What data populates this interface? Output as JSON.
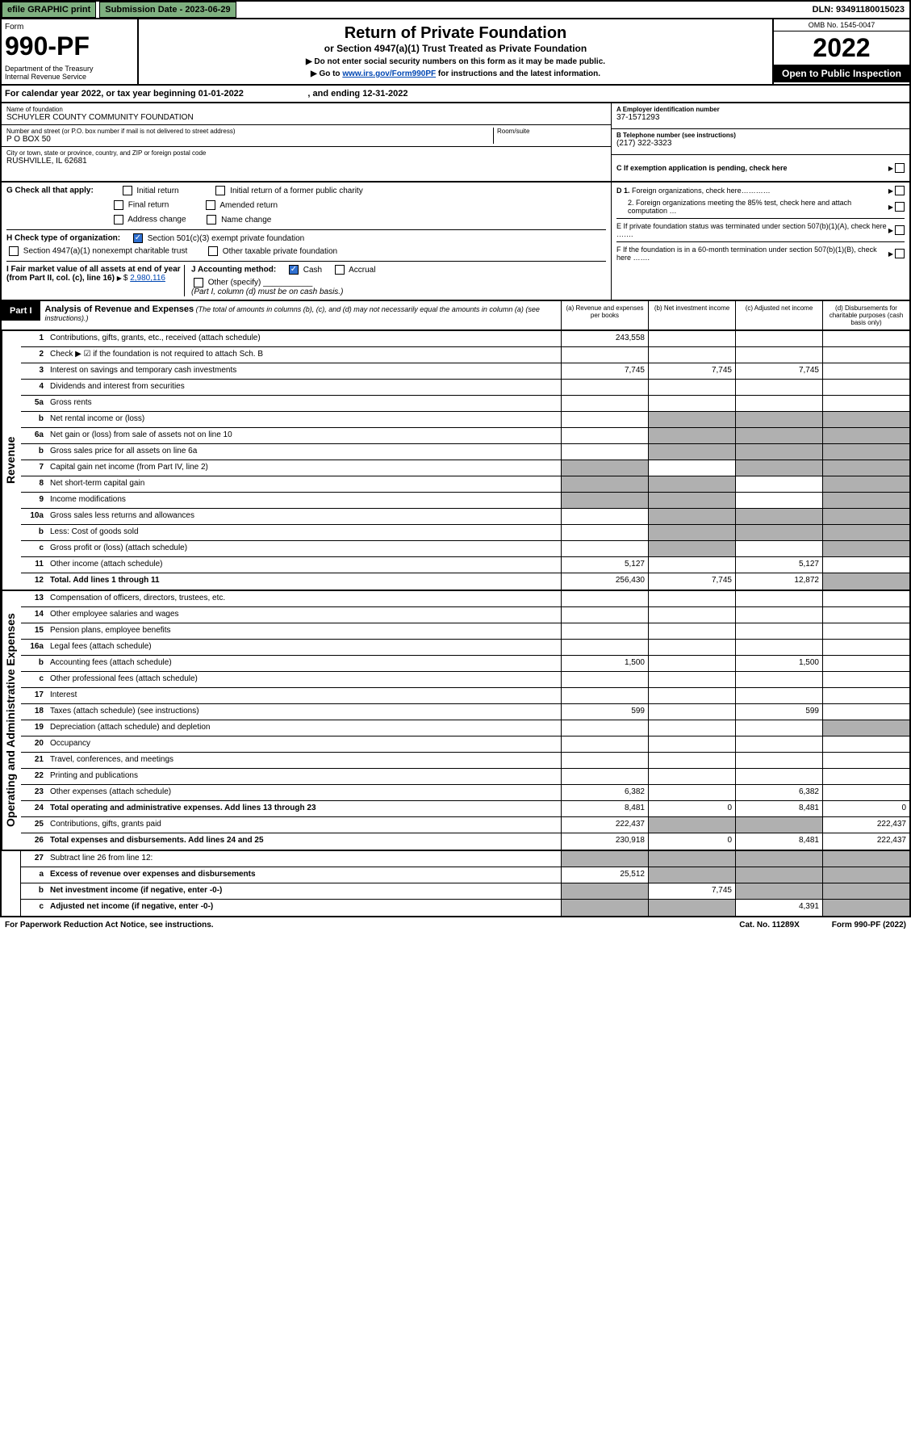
{
  "topbar": {
    "efile": "efile GRAPHIC print",
    "subdate_label": "Submission Date - 2023-06-29",
    "dln": "DLN: 93491180015023"
  },
  "header": {
    "form_word": "Form",
    "form_no": "990-PF",
    "dept": "Department of the Treasury\nInternal Revenue Service",
    "title": "Return of Private Foundation",
    "subtitle": "or Section 4947(a)(1) Trust Treated as Private Foundation",
    "note1": "▶ Do not enter social security numbers on this form as it may be made public.",
    "note2_pre": "▶ Go to ",
    "note2_link": "www.irs.gov/Form990PF",
    "note2_post": " for instructions and the latest information.",
    "omb": "OMB No. 1545-0047",
    "year": "2022",
    "open": "Open to Public Inspection"
  },
  "calrow": "For calendar year 2022, or tax year beginning 01-01-2022                          , and ending 12-31-2022",
  "id": {
    "name_label": "Name of foundation",
    "name": "SCHUYLER COUNTY COMMUNITY FOUNDATION",
    "addr_label": "Number and street (or P.O. box number if mail is not delivered to street address)",
    "addr": "P O BOX 50",
    "room_label": "Room/suite",
    "city_label": "City or town, state or province, country, and ZIP or foreign postal code",
    "city": "RUSHVILLE, IL  62681",
    "ein_label": "A Employer identification number",
    "ein": "37-1571293",
    "phone_label": "B Telephone number (see instructions)",
    "phone": "(217) 322-3323",
    "c_label": "C If exemption application is pending, check here"
  },
  "g": {
    "label": "G Check all that apply:",
    "opts": [
      "Initial return",
      "Final return",
      "Address change",
      "Initial return of a former public charity",
      "Amended return",
      "Name change"
    ]
  },
  "h": {
    "label": "H Check type of organization:",
    "opt1": "Section 501(c)(3) exempt private foundation",
    "opt2": "Section 4947(a)(1) nonexempt charitable trust",
    "opt3": "Other taxable private foundation"
  },
  "i": {
    "label": "I Fair market value of all assets at end of year (from Part II, col. (c), line 16)",
    "value": "2,980,116"
  },
  "j": {
    "label": "J Accounting method:",
    "cash": "Cash",
    "accrual": "Accrual",
    "other": "Other (specify)",
    "note": "(Part I, column (d) must be on cash basis.)"
  },
  "d": {
    "d1": "D 1. Foreign organizations, check here…………",
    "d2": "2. Foreign organizations meeting the 85% test, check here and attach computation …"
  },
  "e": "E  If private foundation status was terminated under section 507(b)(1)(A), check here …….",
  "f": "F  If the foundation is in a 60-month termination under section 507(b)(1)(B), check here …….",
  "part1": {
    "label": "Part I",
    "title": "Analysis of Revenue and Expenses",
    "note": "(The total of amounts in columns (b), (c), and (d) may not necessarily equal the amounts in column (a) (see instructions).)",
    "colA": "(a)   Revenue and expenses per books",
    "colB": "(b)   Net investment income",
    "colC": "(c)   Adjusted net income",
    "colD": "(d)  Disbursements for charitable purposes (cash basis only)"
  },
  "sections": {
    "revenue": "Revenue",
    "expenses": "Operating and Administrative Expenses"
  },
  "rows": [
    {
      "n": "1",
      "d": "Contributions, gifts, grants, etc., received (attach schedule)",
      "a": "243,558",
      "b": "",
      "c": "",
      "dd": "",
      "gb": "",
      "gc": "",
      "gd": ""
    },
    {
      "n": "2",
      "d": "Check ▶ ☑ if the foundation is not required to attach Sch. B",
      "a": "",
      "b": "",
      "c": "",
      "dd": "",
      "nodots": true
    },
    {
      "n": "3",
      "d": "Interest on savings and temporary cash investments",
      "a": "7,745",
      "b": "7,745",
      "c": "7,745",
      "dd": ""
    },
    {
      "n": "4",
      "d": "Dividends and interest from securities",
      "a": "",
      "b": "",
      "c": "",
      "dd": ""
    },
    {
      "n": "5a",
      "d": "Gross rents",
      "a": "",
      "b": "",
      "c": "",
      "dd": ""
    },
    {
      "n": "b",
      "d": "Net rental income or (loss)",
      "a": "",
      "b": "",
      "c": "",
      "dd": "",
      "gb": "g",
      "gc": "g",
      "gd": "g",
      "short": true
    },
    {
      "n": "6a",
      "d": "Net gain or (loss) from sale of assets not on line 10",
      "a": "",
      "b": "",
      "c": "",
      "dd": "",
      "gb": "g",
      "gc": "g",
      "gd": "g"
    },
    {
      "n": "b",
      "d": "Gross sales price for all assets on line 6a",
      "a": "",
      "b": "",
      "c": "",
      "dd": "",
      "gb": "g",
      "gc": "g",
      "gd": "g",
      "short": true
    },
    {
      "n": "7",
      "d": "Capital gain net income (from Part IV, line 2)",
      "a": "",
      "b": "",
      "c": "",
      "dd": "",
      "ga": "g",
      "gc": "g",
      "gd": "g"
    },
    {
      "n": "8",
      "d": "Net short-term capital gain",
      "a": "",
      "b": "",
      "c": "",
      "dd": "",
      "ga": "g",
      "gb": "g",
      "gd": "g"
    },
    {
      "n": "9",
      "d": "Income modifications",
      "a": "",
      "b": "",
      "c": "",
      "dd": "",
      "ga": "g",
      "gb": "g",
      "gd": "g"
    },
    {
      "n": "10a",
      "d": "Gross sales less returns and allowances",
      "a": "",
      "b": "",
      "c": "",
      "dd": "",
      "gb": "g",
      "gc": "g",
      "gd": "g",
      "short": true
    },
    {
      "n": "b",
      "d": "Less: Cost of goods sold",
      "a": "",
      "b": "",
      "c": "",
      "dd": "",
      "gb": "g",
      "gc": "g",
      "gd": "g",
      "short": true
    },
    {
      "n": "c",
      "d": "Gross profit or (loss) (attach schedule)",
      "a": "",
      "b": "",
      "c": "",
      "dd": "",
      "gb": "g",
      "gd": "g"
    },
    {
      "n": "11",
      "d": "Other income (attach schedule)",
      "a": "5,127",
      "b": "",
      "c": "5,127",
      "dd": ""
    },
    {
      "n": "12",
      "d": "Total. Add lines 1 through 11",
      "a": "256,430",
      "b": "7,745",
      "c": "12,872",
      "dd": "",
      "bold": true,
      "gd": "g"
    }
  ],
  "exprows": [
    {
      "n": "13",
      "d": "Compensation of officers, directors, trustees, etc.",
      "a": "",
      "b": "",
      "c": "",
      "dd": ""
    },
    {
      "n": "14",
      "d": "Other employee salaries and wages",
      "a": "",
      "b": "",
      "c": "",
      "dd": ""
    },
    {
      "n": "15",
      "d": "Pension plans, employee benefits",
      "a": "",
      "b": "",
      "c": "",
      "dd": ""
    },
    {
      "n": "16a",
      "d": "Legal fees (attach schedule)",
      "a": "",
      "b": "",
      "c": "",
      "dd": ""
    },
    {
      "n": "b",
      "d": "Accounting fees (attach schedule)",
      "a": "1,500",
      "b": "",
      "c": "1,500",
      "dd": ""
    },
    {
      "n": "c",
      "d": "Other professional fees (attach schedule)",
      "a": "",
      "b": "",
      "c": "",
      "dd": ""
    },
    {
      "n": "17",
      "d": "Interest",
      "a": "",
      "b": "",
      "c": "",
      "dd": ""
    },
    {
      "n": "18",
      "d": "Taxes (attach schedule) (see instructions)",
      "a": "599",
      "b": "",
      "c": "599",
      "dd": ""
    },
    {
      "n": "19",
      "d": "Depreciation (attach schedule) and depletion",
      "a": "",
      "b": "",
      "c": "",
      "dd": "",
      "gd": "g"
    },
    {
      "n": "20",
      "d": "Occupancy",
      "a": "",
      "b": "",
      "c": "",
      "dd": ""
    },
    {
      "n": "21",
      "d": "Travel, conferences, and meetings",
      "a": "",
      "b": "",
      "c": "",
      "dd": ""
    },
    {
      "n": "22",
      "d": "Printing and publications",
      "a": "",
      "b": "",
      "c": "",
      "dd": ""
    },
    {
      "n": "23",
      "d": "Other expenses (attach schedule)",
      "a": "6,382",
      "b": "",
      "c": "6,382",
      "dd": ""
    },
    {
      "n": "24",
      "d": "Total operating and administrative expenses. Add lines 13 through 23",
      "a": "8,481",
      "b": "0",
      "c": "8,481",
      "dd": "0",
      "bold": true
    },
    {
      "n": "25",
      "d": "Contributions, gifts, grants paid",
      "a": "222,437",
      "b": "",
      "c": "",
      "dd": "222,437",
      "gb": "g",
      "gc": "g"
    },
    {
      "n": "26",
      "d": "Total expenses and disbursements. Add lines 24 and 25",
      "a": "230,918",
      "b": "0",
      "c": "8,481",
      "dd": "222,437",
      "bold": true
    }
  ],
  "subrows": [
    {
      "n": "27",
      "d": "Subtract line 26 from line 12:",
      "a": "",
      "b": "",
      "c": "",
      "dd": "",
      "ga": "g",
      "gb": "g",
      "gc": "g",
      "gd": "g"
    },
    {
      "n": "a",
      "d": "Excess of revenue over expenses and disbursements",
      "a": "25,512",
      "b": "",
      "c": "",
      "dd": "",
      "bold": true,
      "gb": "g",
      "gc": "g",
      "gd": "g"
    },
    {
      "n": "b",
      "d": "Net investment income (if negative, enter -0-)",
      "a": "",
      "b": "7,745",
      "c": "",
      "dd": "",
      "bold": true,
      "ga": "g",
      "gc": "g",
      "gd": "g"
    },
    {
      "n": "c",
      "d": "Adjusted net income (if negative, enter -0-)",
      "a": "",
      "b": "",
      "c": "4,391",
      "dd": "",
      "bold": true,
      "ga": "g",
      "gb": "g",
      "gd": "g"
    }
  ],
  "footer": {
    "left": "For Paperwork Reduction Act Notice, see instructions.",
    "mid": "Cat. No. 11289X",
    "right": "Form 990-PF (2022)"
  }
}
